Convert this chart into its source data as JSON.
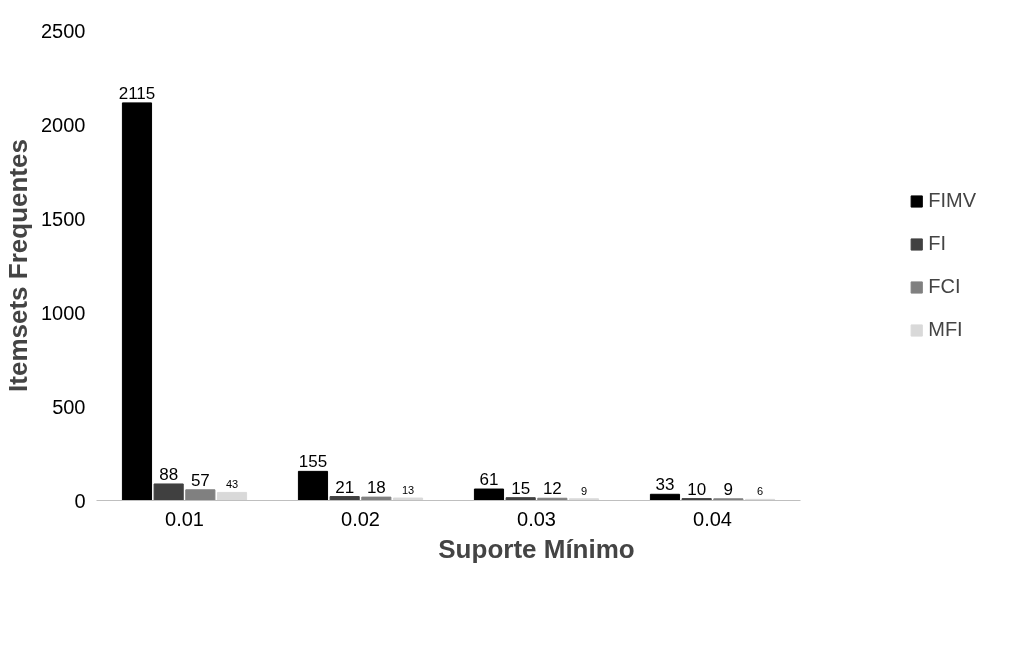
{
  "chart_data": {
    "type": "bar",
    "xlabel": "Suporte Mínimo",
    "ylabel": "Itemsets Frequentes",
    "categories": [
      "0.01",
      "0.02",
      "0.03",
      "0.04"
    ],
    "series": [
      {
        "name": "FIMV",
        "color": "#000000",
        "values": [
          2115,
          155,
          61,
          33
        ]
      },
      {
        "name": "FI",
        "color": "#404040",
        "values": [
          88,
          21,
          15,
          10
        ]
      },
      {
        "name": "FCI",
        "color": "#808080",
        "values": [
          57,
          18,
          12,
          9
        ]
      },
      {
        "name": "MFI",
        "color": "#d9d9d9",
        "values": [
          43,
          13,
          9,
          6
        ]
      }
    ],
    "ylim": [
      0,
      2500
    ],
    "yticks": [
      0,
      500,
      1000,
      1500,
      2000,
      2500
    ],
    "data_labels": true,
    "legend": "right",
    "grid": false
  }
}
